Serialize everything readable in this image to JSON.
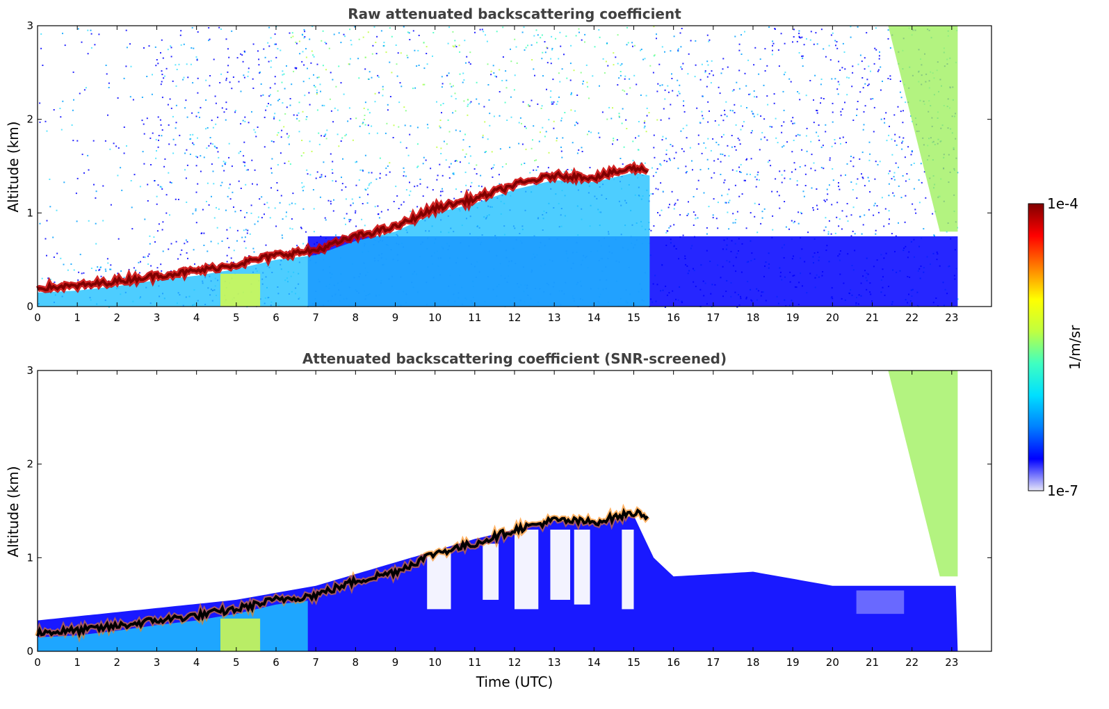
{
  "chart_data": [
    {
      "type": "heatmap",
      "title": "Raw attenuated backscattering coefficient",
      "xlabel": "",
      "ylabel": "Altitude (km)",
      "xlim": [
        0,
        24
      ],
      "ylim": [
        0,
        3
      ],
      "xticks": [
        "0",
        "1",
        "2",
        "3",
        "4",
        "5",
        "6",
        "7",
        "8",
        "9",
        "10",
        "11",
        "12",
        "13",
        "14",
        "15",
        "16",
        "17",
        "18",
        "19",
        "20",
        "21",
        "22",
        "23"
      ],
      "yticks": [
        "0",
        "1",
        "2",
        "3"
      ],
      "data_end_hour": 23.15,
      "boundary_layer_top_km": [
        [
          0,
          0.2
        ],
        [
          1,
          0.22
        ],
        [
          2,
          0.27
        ],
        [
          3,
          0.33
        ],
        [
          4,
          0.38
        ],
        [
          5,
          0.45
        ],
        [
          6,
          0.55
        ],
        [
          7,
          0.6
        ],
        [
          8,
          0.75
        ],
        [
          9,
          0.85
        ],
        [
          10,
          1.05
        ],
        [
          11,
          1.15
        ],
        [
          12,
          1.3
        ],
        [
          13,
          1.4
        ],
        [
          14,
          1.38
        ],
        [
          15,
          1.48
        ],
        [
          15.4,
          1.45
        ]
      ],
      "precipitation_fall_streak": {
        "start_hour": 21.4,
        "end_hour": 23.15,
        "top_km": 3,
        "base_km": 0.8
      }
    },
    {
      "type": "heatmap",
      "title": "Attenuated backscattering coefficient (SNR-screened)",
      "xlabel": "Time (UTC)",
      "ylabel": "Altitude (km)",
      "xlim": [
        0,
        24
      ],
      "ylim": [
        0,
        3
      ],
      "xticks": [
        "0",
        "1",
        "2",
        "3",
        "4",
        "5",
        "6",
        "7",
        "8",
        "9",
        "10",
        "11",
        "12",
        "13",
        "14",
        "15",
        "16",
        "17",
        "18",
        "19",
        "20",
        "21",
        "22",
        "23"
      ],
      "yticks": [
        "0",
        "1",
        "2",
        "3"
      ],
      "data_end_hour": 23.15,
      "screened_layer_top_km": [
        [
          0,
          0.33
        ],
        [
          5,
          0.55
        ],
        [
          7,
          0.7
        ],
        [
          9,
          0.95
        ],
        [
          11,
          1.2
        ],
        [
          12,
          1.3
        ],
        [
          13,
          1.4
        ],
        [
          14,
          1.38
        ],
        [
          15,
          1.45
        ],
        [
          15.5,
          1.0
        ],
        [
          16,
          0.8
        ],
        [
          18,
          0.85
        ],
        [
          20,
          0.7
        ],
        [
          23,
          0.7
        ]
      ]
    }
  ],
  "colorbar": {
    "label": "1/m/sr",
    "max_label": "1e-4",
    "min_label": "1e-7",
    "scale": "log",
    "colormap": [
      "#e6e6f8",
      "#0000ff",
      "#0080ff",
      "#00e0ff",
      "#40ffc0",
      "#c0ff40",
      "#ffff00",
      "#ff8000",
      "#ff0000",
      "#800000"
    ]
  }
}
